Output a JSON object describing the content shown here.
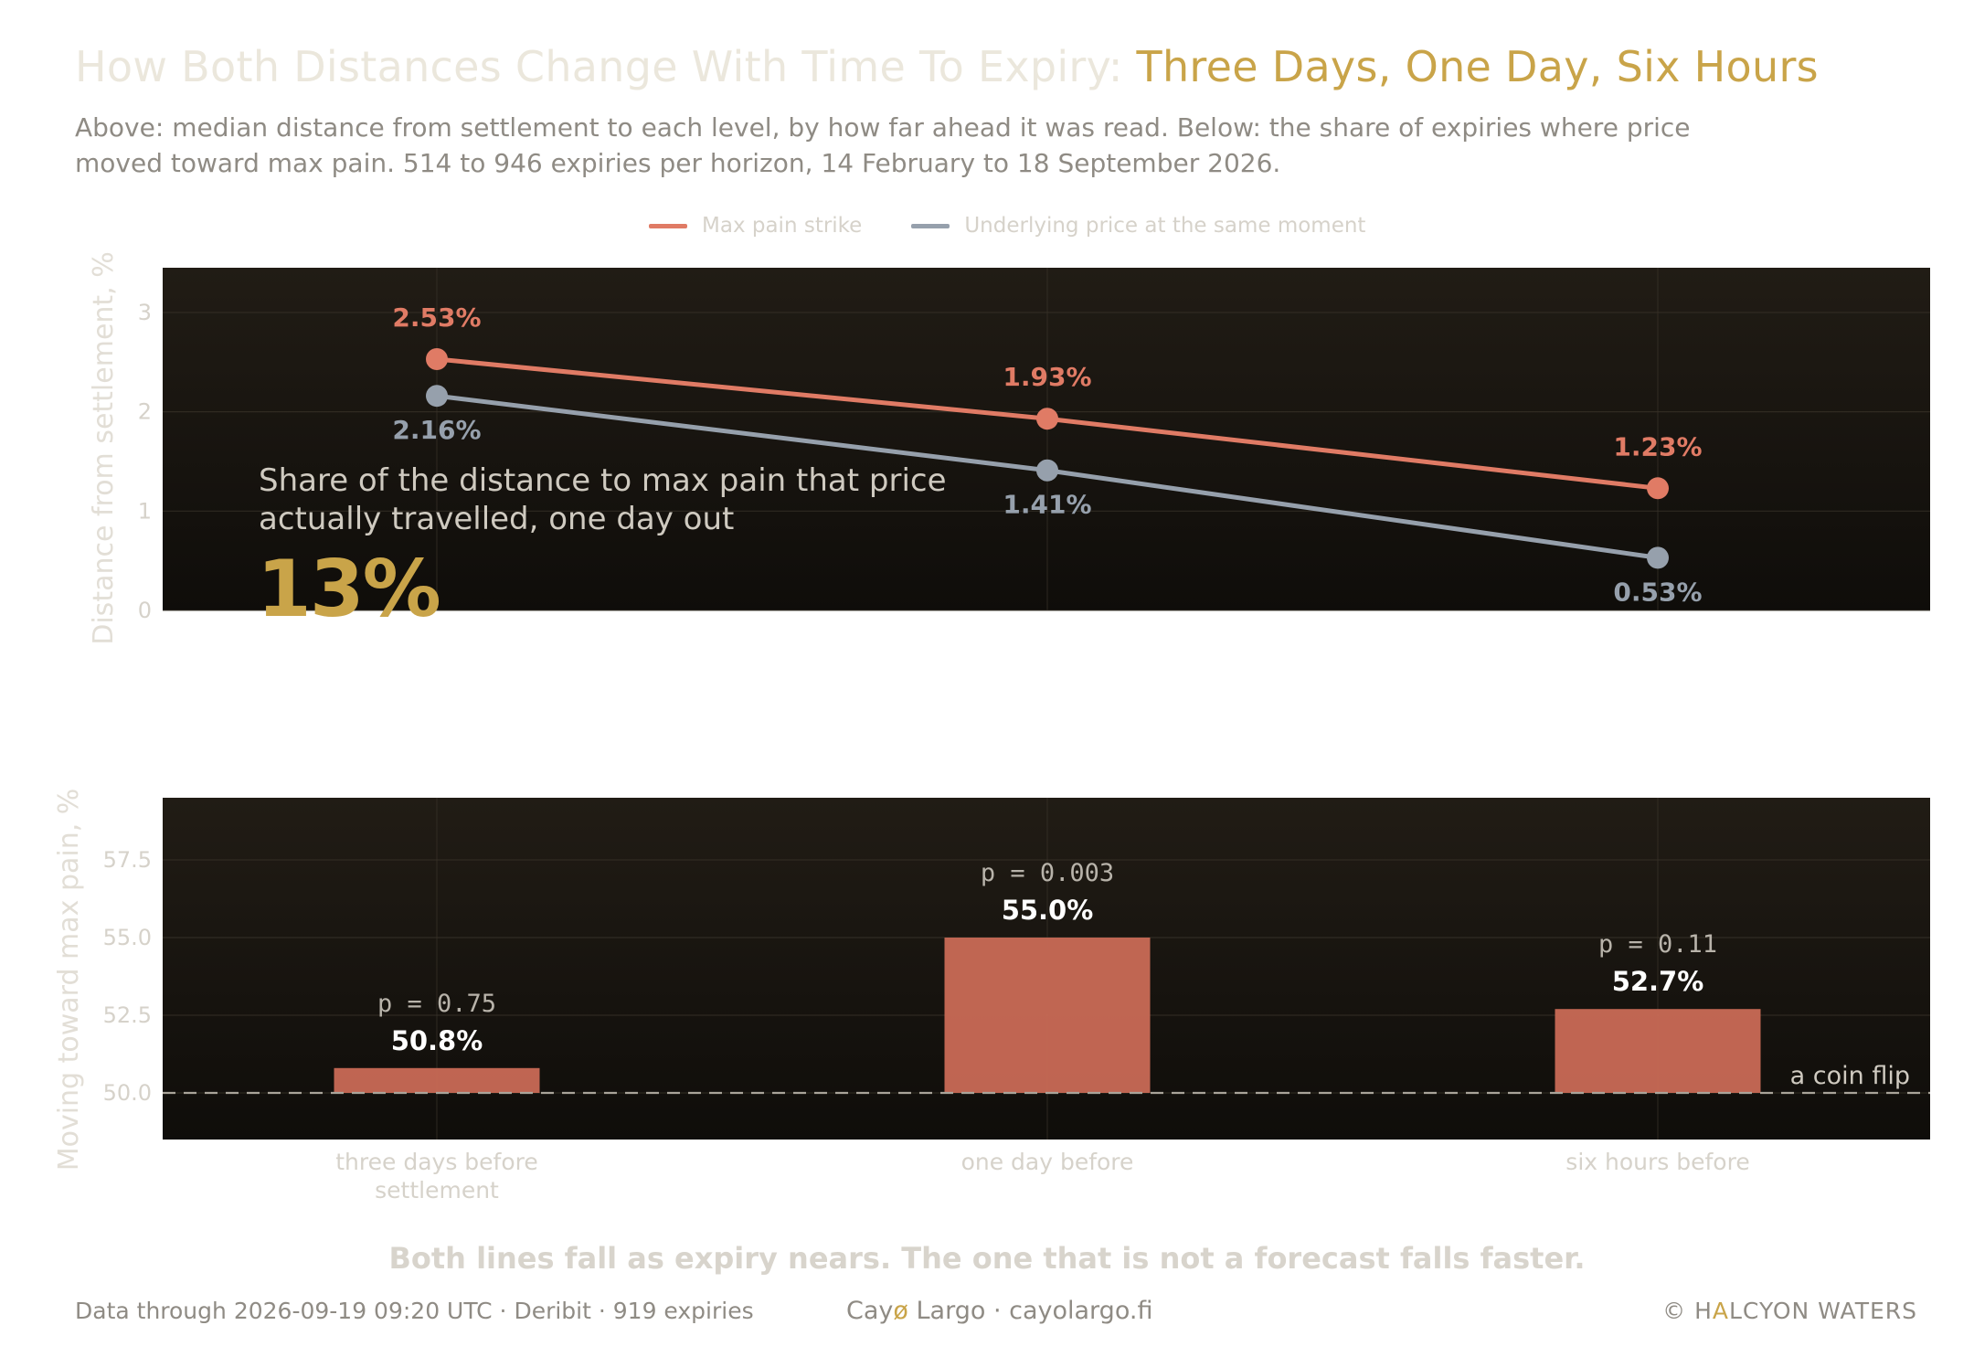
{
  "title": {
    "lead": "How Both Distances Change With Time To Expiry: ",
    "highlight": "Three Days, One Day, Six Hours"
  },
  "subtitle": "Above: median distance from settlement to each level, by how far ahead it was read. Below: the share of expiries where price moved toward max pain. 514 to 946 expiries per horizon, 14 February to 18 September 2026.",
  "colors": {
    "max_pain": "#e07b65",
    "underlying": "#96a0ac",
    "bar": "#c96a56",
    "accent": "#c9a449",
    "panel_top": "#201b14",
    "panel_bottom": "#0f0d0a"
  },
  "callout": {
    "text": "Share of the distance to max pain that price actually travelled, one day out",
    "value": "13%"
  },
  "chart_data": [
    {
      "type": "line",
      "x": [
        "three days before settlement",
        "one day before",
        "six hours before"
      ],
      "ylabel": "Distance from settlement, %",
      "ylim": [
        0,
        3.45
      ],
      "yticks": [
        "0",
        "1",
        "2",
        "3"
      ],
      "grid": true,
      "legend": "top-center",
      "series": [
        {
          "name": "Max pain strike",
          "values": [
            2.53,
            1.93,
            1.23
          ],
          "labels": [
            "2.53%",
            "1.93%",
            "1.23%"
          ]
        },
        {
          "name": "Underlying price at the same moment",
          "values": [
            2.16,
            1.41,
            0.53
          ],
          "labels": [
            "2.16%",
            "1.41%",
            "0.53%"
          ]
        }
      ]
    },
    {
      "type": "bar",
      "categories": [
        "three days before settlement",
        "one day before",
        "six hours before"
      ],
      "values": [
        50.8,
        55.0,
        52.7
      ],
      "labels": [
        "50.8%",
        "55.0%",
        "52.7%"
      ],
      "p_values": [
        "p = 0.75",
        "p = 0.003",
        "p = 0.11"
      ],
      "ylabel": "Moving toward max pain, %",
      "ylim": [
        48.5,
        59.5
      ],
      "yticks": [
        "50.0",
        "52.5",
        "55.0",
        "57.5"
      ],
      "reference_line": {
        "value": 50.0,
        "label": "a coin flip"
      },
      "grid": true
    }
  ],
  "x_tick_labels": [
    [
      "three days before",
      "settlement"
    ],
    [
      "one day before"
    ],
    [
      "six hours before"
    ]
  ],
  "takeaway": "Both lines fall as expiry nears. The one that is not a forecast falls faster.",
  "footer": {
    "left": "Data through 2026-09-19 09:20 UTC  ·  Deribit  ·  919 expiries",
    "mid_brand_a": "Cay",
    "mid_brand_o": "ø",
    "mid_brand_b": " Largo  ·  cayolargo.fi",
    "right_a": "© H",
    "right_b": "A",
    "right_c": "LCYON WATERS"
  }
}
